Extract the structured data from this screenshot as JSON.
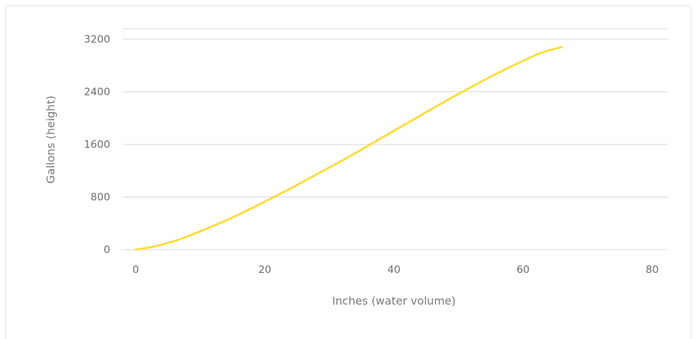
{
  "chart_data": {
    "type": "line",
    "title": "",
    "xlabel": "Inches (water volume)",
    "ylabel": "Gallons (height)",
    "xlim": [
      0,
      80
    ],
    "ylim": [
      0,
      3200
    ],
    "xticks": [
      0,
      20,
      40,
      60,
      80
    ],
    "yticks": [
      0,
      800,
      1600,
      2400,
      3200
    ],
    "grid": "horizontal",
    "legend": "none",
    "series": [
      {
        "color": "#fddb3a",
        "x": [
          0,
          3,
          6,
          9,
          12,
          15,
          18,
          21,
          24,
          27,
          30,
          33,
          36,
          39,
          42,
          45,
          48,
          51,
          54,
          57,
          60,
          63,
          66
        ],
        "y": [
          0,
          50,
          130,
          240,
          360,
          490,
          630,
          780,
          930,
          1090,
          1250,
          1410,
          1580,
          1750,
          1920,
          2090,
          2260,
          2420,
          2580,
          2730,
          2870,
          3000,
          3080
        ]
      }
    ]
  }
}
